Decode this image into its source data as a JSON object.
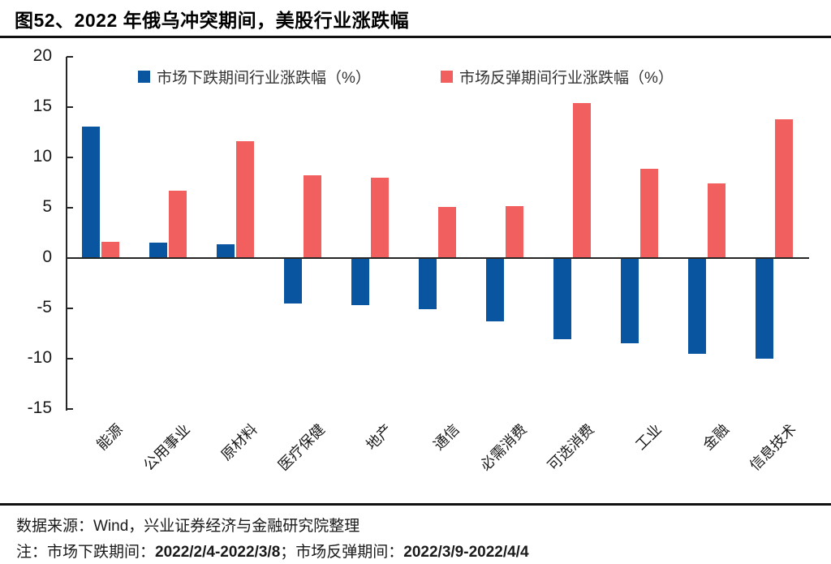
{
  "title": "图52、2022 年俄乌冲突期间，美股行业涨跌幅",
  "chart_data": {
    "type": "bar",
    "title": "图52、2022 年俄乌冲突期间，美股行业涨跌幅",
    "categories": [
      "能源",
      "公用事业",
      "原材料",
      "医疗保健",
      "地产",
      "通信",
      "必需消费",
      "可选消费",
      "工业",
      "金融",
      "信息技术"
    ],
    "series": [
      {
        "name": "市场下跌期间行业涨跌幅（%）",
        "color": "#0a55a0",
        "values": [
          13.1,
          1.5,
          1.4,
          -4.4,
          -4.6,
          -5.0,
          -6.2,
          -8.0,
          -8.4,
          -9.4,
          -9.9
        ]
      },
      {
        "name": "市场反弹期间行业涨跌幅（%）",
        "color": "#f15f5f",
        "values": [
          1.6,
          6.7,
          11.6,
          8.2,
          8.0,
          5.1,
          5.2,
          15.4,
          8.9,
          7.4,
          13.8
        ]
      }
    ],
    "ylim": [
      -15,
      20
    ],
    "yticks": [
      20,
      15,
      10,
      5,
      0,
      -5,
      -10,
      -15
    ],
    "xlabel": "",
    "ylabel": "",
    "grid": false,
    "legend_position": "top"
  },
  "footer": {
    "source": "数据来源：Wind，兴业证券经济与金融研究院整理",
    "note_prefix": "注：市场下跌期间：",
    "note_date1": "2022/2/4-2022/3/8",
    "note_mid": "；市场反弹期间：",
    "note_date2": "2022/3/9-2022/4/4"
  },
  "colors": {
    "decline_blue": "#0a55a0",
    "rebound_red": "#f15f5f",
    "axis": "#262626",
    "separator": "#111111"
  }
}
